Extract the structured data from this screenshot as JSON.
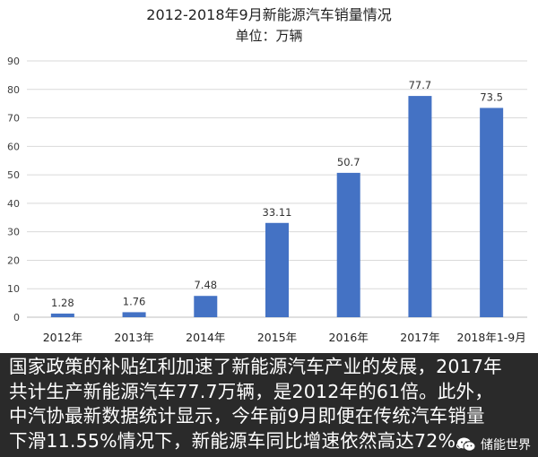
{
  "chart_data": {
    "type": "bar",
    "title": "2012-2018年9月新能源汽车销量情况",
    "subtitle": "单位：万辆",
    "categories": [
      "2012年",
      "2013年",
      "2014年",
      "2015年",
      "2016年",
      "2017年",
      "2018年1-9月"
    ],
    "values": [
      1.28,
      1.76,
      7.48,
      33.11,
      50.7,
      77.7,
      73.5
    ],
    "data_labels": [
      "1.28",
      "1.76",
      "7.48",
      "33.11",
      "50.7",
      "77.7",
      "73.5"
    ],
    "y_ticks": [
      "0",
      "10",
      "20",
      "30",
      "40",
      "50",
      "60",
      "70",
      "80",
      "90"
    ],
    "ylim": [
      0,
      90
    ],
    "grid": true,
    "bar_color": "#4472c4"
  },
  "caption": {
    "lines": [
      "国家政策的补贴红利加速了新能源汽车产业的发展，2017年",
      "共计生产新能源汽车77.7万辆，是2012年的61倍。此外，",
      "中汽协最新数据统计显示，今年前9月即便在传统汽车销量",
      "下滑11.55%情况下，新能源车同比增速依然高达72%。"
    ]
  },
  "watermark": {
    "label": "储能世界",
    "icon": "wechat-icon"
  }
}
